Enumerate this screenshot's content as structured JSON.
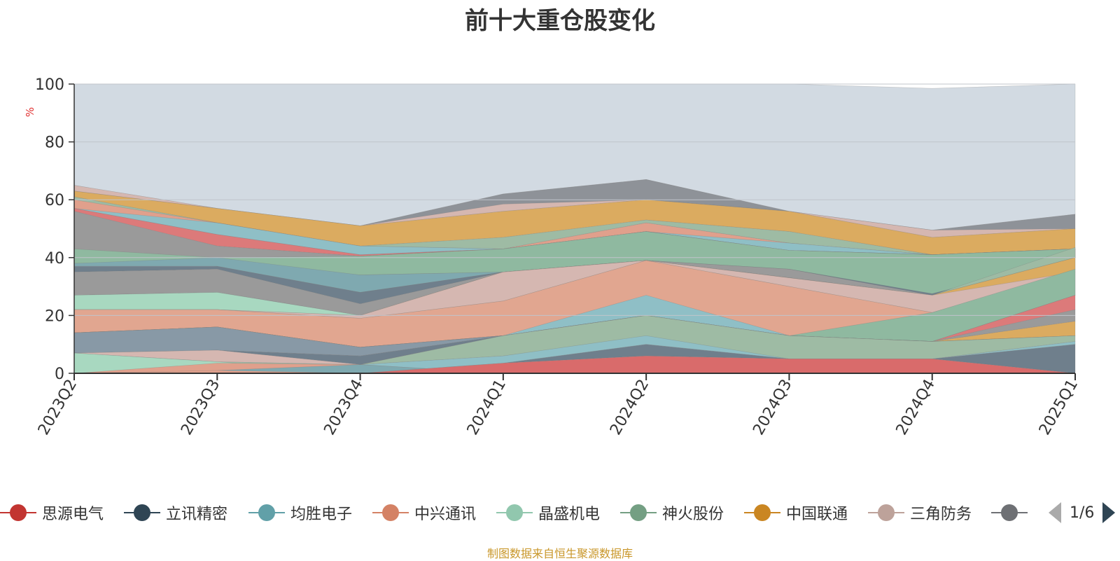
{
  "title": "前十大重仓股变化",
  "source_note": "制图数据来自恒生聚源数据库",
  "chart_data": {
    "type": "area",
    "title": "前十大重仓股变化",
    "ylabel": "%",
    "ylim": [
      0,
      100
    ],
    "yticks": [
      0,
      20,
      40,
      60,
      80,
      100
    ],
    "grid": true,
    "categories": [
      "2023Q2",
      "2023Q3",
      "2023Q4",
      "2024Q1",
      "2024Q2",
      "2024Q3",
      "2024Q4",
      "2025Q1"
    ],
    "layers": [
      {
        "color": "#d2dae2",
        "lower": [
          65,
          57,
          51,
          62,
          67,
          56,
          49.5,
          55
        ],
        "upper": [
          100,
          100,
          100,
          100,
          100,
          100,
          98.5,
          100
        ]
      },
      {
        "color": "#8e9298",
        "lower": [
          62,
          57,
          51,
          58,
          60,
          56,
          48,
          50
        ],
        "upper": [
          64,
          57,
          51,
          62,
          67,
          56,
          49.5,
          55
        ]
      },
      {
        "color": "#d5b7b1",
        "lower": [
          63,
          57,
          51,
          56,
          60,
          56,
          47,
          50
        ],
        "upper": [
          65,
          57,
          51,
          58.5,
          60,
          56,
          49.5,
          50
        ]
      },
      {
        "color": "#dbab60",
        "lower": [
          61,
          52,
          44,
          47,
          53,
          49,
          41,
          43
        ],
        "upper": [
          63,
          57,
          51,
          56,
          60,
          56,
          47,
          50
        ]
      },
      {
        "color": "#9ebba4",
        "lower": [
          60,
          49,
          43,
          43,
          52,
          45,
          41,
          43
        ],
        "upper": [
          61,
          52,
          44,
          47,
          53,
          49,
          41,
          43
        ]
      },
      {
        "color": "#e0a08c",
        "lower": [
          57,
          48,
          41,
          43,
          49,
          42.5,
          41,
          43
        ],
        "upper": [
          60,
          52,
          44,
          43,
          52,
          45,
          41,
          43
        ]
      },
      {
        "color": "#8fbfc6",
        "lower": [
          57,
          48,
          41,
          43,
          49,
          42.5,
          41,
          43
        ],
        "upper": [
          57,
          52,
          44,
          43,
          49,
          45,
          41,
          43
        ]
      },
      {
        "color": "#dc7a7a",
        "lower": [
          56,
          44,
          40.5,
          43,
          49,
          42.5,
          41,
          43
        ],
        "upper": [
          57,
          48,
          41,
          43,
          49,
          42.5,
          41,
          43
        ]
      },
      {
        "color": "#e1a690",
        "lower": [
          40,
          40,
          34,
          35,
          39,
          33,
          27.5,
          40
        ],
        "upper": [
          42,
          40,
          40.5,
          43,
          49,
          42.5,
          41,
          43
        ]
      },
      {
        "color": "#9a9a9a",
        "lower": [
          42,
          37,
          25,
          35,
          39,
          36,
          27.5,
          40
        ],
        "upper": [
          56,
          44,
          40.5,
          43,
          49,
          42.5,
          41,
          43
        ]
      },
      {
        "color": "#8fb9a0",
        "lower": [
          38,
          38,
          34,
          35,
          39,
          33,
          27.5,
          40
        ],
        "upper": [
          43,
          40,
          40.5,
          43,
          49,
          42.5,
          41,
          43
        ]
      },
      {
        "color": "#7fa9b0",
        "lower": [
          37,
          37,
          28,
          35,
          39,
          33,
          27,
          40
        ],
        "upper": [
          38,
          40,
          34,
          35,
          39,
          36,
          27.5,
          40
        ]
      },
      {
        "color": "#6f7f8c",
        "lower": [
          35,
          36,
          24,
          35,
          39,
          33,
          27,
          40
        ],
        "upper": [
          37,
          37,
          28,
          35,
          39,
          36,
          27.5,
          40
        ]
      },
      {
        "color": "#9a9a9a",
        "lower": [
          27,
          28,
          20,
          35,
          39,
          33,
          27,
          40
        ],
        "upper": [
          35,
          36,
          24,
          35,
          39,
          36,
          27,
          40
        ]
      },
      {
        "color": "#9ebba4",
        "lower": [
          27,
          28,
          20,
          35,
          39,
          33,
          27,
          40
        ],
        "upper": [
          27,
          28,
          20,
          35,
          39,
          33,
          27,
          43.5
        ]
      },
      {
        "color": "#a8d8c0",
        "lower": [
          22,
          22,
          19,
          35,
          39,
          33,
          27,
          36
        ],
        "upper": [
          27,
          28,
          20,
          35,
          39,
          33,
          27,
          40
        ]
      },
      {
        "color": "#dbab60",
        "lower": [
          22,
          22,
          19,
          25,
          39,
          30,
          21,
          35
        ],
        "upper": [
          22,
          22,
          20,
          35,
          39,
          33,
          27,
          40
        ]
      },
      {
        "color": "#d5b7b1",
        "lower": [
          22,
          22,
          19,
          25,
          39,
          30,
          21,
          35
        ],
        "upper": [
          22,
          22,
          20,
          35,
          39,
          33,
          27,
          35
        ]
      },
      {
        "color": "#e1a690",
        "lower": [
          14,
          16,
          9,
          13,
          20,
          13,
          11,
          27
        ],
        "upper": [
          22,
          22,
          19,
          25,
          39,
          30,
          21,
          35
        ]
      },
      {
        "color": "#8fb9a0",
        "lower": [
          14,
          16,
          9,
          13,
          20,
          13,
          11,
          27
        ],
        "upper": [
          14,
          16,
          9,
          13,
          20,
          13,
          21,
          36
        ]
      },
      {
        "color": "#8fbfc6",
        "lower": [
          14,
          15,
          9,
          13,
          20,
          13,
          11,
          27
        ],
        "upper": [
          14,
          16,
          9,
          13,
          27,
          13,
          11,
          27
        ]
      },
      {
        "color": "#dc7a7a",
        "lower": [
          14,
          15,
          9,
          13,
          20,
          13,
          11,
          22
        ],
        "upper": [
          14,
          16,
          9,
          13,
          20,
          13,
          11,
          27
        ]
      },
      {
        "color": "#9a9a9a",
        "lower": [
          14,
          15,
          9,
          13,
          20,
          13,
          11,
          18
        ],
        "upper": [
          14,
          16,
          9,
          13,
          20,
          13,
          11,
          22
        ]
      },
      {
        "color": "#dbab60",
        "lower": [
          14,
          15,
          9,
          13,
          20,
          13,
          11,
          13
        ],
        "upper": [
          14,
          16,
          9,
          13,
          20,
          13,
          11,
          18
        ]
      },
      {
        "color": "#8899a6",
        "lower": [
          7,
          8,
          6,
          13,
          20,
          13,
          11,
          13
        ],
        "upper": [
          14,
          16,
          9,
          13,
          20,
          13,
          11,
          13
        ]
      },
      {
        "color": "#6f7f8c",
        "lower": [
          7,
          8,
          3,
          13,
          20,
          13,
          11,
          13
        ],
        "upper": [
          7,
          8,
          6,
          13,
          20,
          13,
          11,
          13
        ]
      },
      {
        "color": "#d5b7b1",
        "lower": [
          7,
          4,
          3,
          13,
          20,
          13,
          11,
          13
        ],
        "upper": [
          7,
          8,
          3,
          13,
          20,
          13,
          11,
          13
        ]
      },
      {
        "color": "#9ebba4",
        "lower": [
          0,
          0,
          3,
          6,
          12,
          5,
          5,
          11
        ],
        "upper": [
          7,
          4,
          3,
          13,
          20,
          13,
          11,
          13
        ]
      },
      {
        "color": "#8fbfc6",
        "lower": [
          0,
          0,
          0,
          3.5,
          10,
          5,
          5,
          10
        ],
        "upper": [
          0,
          1,
          3,
          6,
          13,
          5,
          5,
          11
        ]
      },
      {
        "color": "#a8d8c0",
        "lower": [
          0,
          0,
          0,
          0,
          0,
          0,
          0,
          0
        ],
        "upper": [
          7,
          4,
          0,
          0,
          0,
          0,
          0,
          0
        ]
      },
      {
        "color": "#e0a08c",
        "lower": [
          0,
          0,
          0,
          0,
          0,
          0,
          0,
          0
        ],
        "upper": [
          0,
          3.5,
          3,
          0,
          0,
          0,
          0,
          0
        ]
      },
      {
        "color": "#7fa9b0",
        "lower": [
          0,
          1,
          0,
          0,
          0,
          0,
          0,
          0
        ],
        "upper": [
          0,
          1,
          3,
          0,
          0,
          0,
          0,
          0
        ]
      },
      {
        "color": "#6f7f8c",
        "lower": [
          0,
          0,
          0,
          3.5,
          6,
          5,
          5,
          0
        ],
        "upper": [
          0,
          0,
          0,
          3.5,
          10,
          5,
          5,
          10
        ]
      },
      {
        "color": "#d96b6b",
        "lower": [
          0,
          0,
          0,
          0,
          0,
          0,
          0,
          0
        ],
        "upper": [
          0,
          0,
          0,
          3.5,
          6,
          5,
          5,
          0
        ]
      }
    ],
    "legend": {
      "position": "bottom",
      "page": "1/6",
      "items": [
        {
          "name": "思源电气",
          "color": "#c23531"
        },
        {
          "name": "立讯精密",
          "color": "#2f4554"
        },
        {
          "name": "均胜电子",
          "color": "#61a0a8"
        },
        {
          "name": "中兴通讯",
          "color": "#d48265"
        },
        {
          "name": "晶盛机电",
          "color": "#91c7ae"
        },
        {
          "name": "神火股份",
          "color": "#749f83"
        },
        {
          "name": "中国联通",
          "color": "#ca8622"
        },
        {
          "name": "三角防务",
          "color": "#bda29a"
        },
        {
          "name": "",
          "color": "#6e7074"
        }
      ]
    }
  }
}
